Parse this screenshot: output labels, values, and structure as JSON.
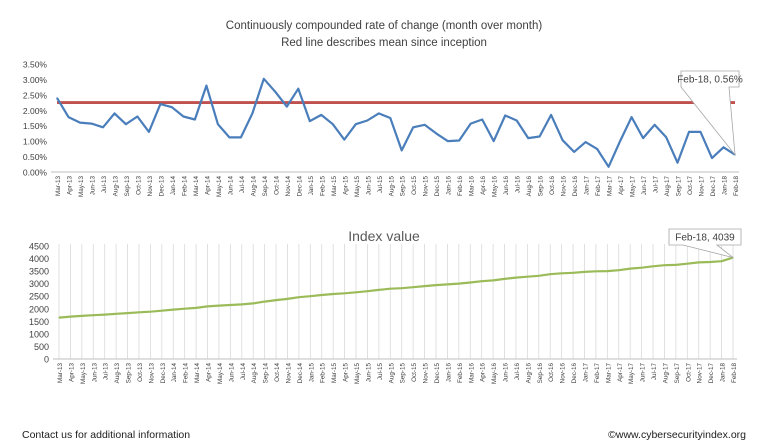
{
  "footer": {
    "left_text": "Contact us for additional information",
    "right_text": "©www.cybersecurityindex.org"
  },
  "colors": {
    "rate_line": "#4a7ebb",
    "mean_line": "#c0504d",
    "index_line": "#9bbb59",
    "gridline": "#d9d9d9"
  },
  "chart_data": [
    {
      "type": "line",
      "title": "Continuously compounded rate of change (month over month)",
      "subtitle": "Red line describes mean since inception",
      "categories": [
        "Mar-13",
        "Apr-13",
        "May-13",
        "Jun-13",
        "Jul-13",
        "Aug-13",
        "Sep-13",
        "Oct-13",
        "Nov-13",
        "Dec-13",
        "Jan-14",
        "Feb-14",
        "Mar-14",
        "Apr-14",
        "May-14",
        "Jun-14",
        "Jul-14",
        "Aug-14",
        "Sep-14",
        "Oct-14",
        "Nov-14",
        "Dec-14",
        "Jan-15",
        "Feb-15",
        "Mar-15",
        "Apr-15",
        "May-15",
        "Jun-15",
        "Jul-15",
        "Aug-15",
        "Sep-15",
        "Oct-15",
        "Nov-15",
        "Dec-15",
        "Jan-16",
        "Feb-16",
        "Mar-16",
        "Apr-16",
        "May-16",
        "Jun-16",
        "Jul-16",
        "Aug-16",
        "Sep-16",
        "Oct-16",
        "Nov-16",
        "Dec-16",
        "Jan-17",
        "Feb-17",
        "Mar-17",
        "Apr-17",
        "May-17",
        "Jun-17",
        "Jul-17",
        "Aug-17",
        "Sep-17",
        "Oct-17",
        "Nov-17",
        "Dec-17",
        "Jan-18",
        "Feb-18"
      ],
      "series": [
        {
          "values": [
            2.4,
            1.78,
            1.6,
            1.57,
            1.45,
            1.9,
            1.55,
            1.8,
            1.3,
            2.2,
            2.1,
            1.8,
            1.7,
            2.8,
            1.55,
            1.12,
            1.12,
            1.9,
            3.02,
            2.6,
            2.12,
            2.7,
            1.65,
            1.85,
            1.55,
            1.05,
            1.55,
            1.67,
            1.9,
            1.75,
            0.7,
            1.45,
            1.53,
            1.25,
            1.0,
            1.02,
            1.57,
            1.7,
            1.0,
            1.83,
            1.67,
            1.1,
            1.15,
            1.85,
            1.03,
            0.65,
            0.97,
            0.75,
            0.17,
            1.0,
            1.78,
            1.1,
            1.53,
            1.13,
            0.3,
            1.3,
            1.3,
            0.45,
            0.8,
            0.56
          ]
        }
      ],
      "mean_value": 2.25,
      "y_ticks": [
        "0.00%",
        "0.50%",
        "1.00%",
        "1.50%",
        "2.00%",
        "2.50%",
        "3.00%",
        "3.50%"
      ],
      "ylim": [
        0,
        3.5
      ],
      "callout": "Feb-18, 0.56%",
      "grid": false
    },
    {
      "type": "line",
      "title": "Index value",
      "categories": [
        "Mar-13",
        "Apr-13",
        "May-13",
        "Jun-13",
        "Jul-13",
        "Aug-13",
        "Sep-13",
        "Oct-13",
        "Nov-13",
        "Dec-13",
        "Jan-14",
        "Feb-14",
        "Mar-14",
        "Apr-14",
        "May-14",
        "Jun-14",
        "Jul-14",
        "Aug-14",
        "Sep-14",
        "Oct-14",
        "Nov-14",
        "Dec-14",
        "Jan-15",
        "Feb-15",
        "Mar-15",
        "Apr-15",
        "May-15",
        "Jun-15",
        "Jul-15",
        "Aug-15",
        "Sep-15",
        "Oct-15",
        "Nov-15",
        "Dec-15",
        "Jan-16",
        "Feb-16",
        "Mar-16",
        "Apr-16",
        "May-16",
        "Jun-16",
        "Jul-16",
        "Aug-16",
        "Sep-16",
        "Oct-16",
        "Nov-16",
        "Dec-16",
        "Jan-17",
        "Feb-17",
        "Mar-17",
        "Apr-17",
        "May-17",
        "Jun-17",
        "Jul-17",
        "Aug-17",
        "Sep-17",
        "Oct-17",
        "Nov-17",
        "Dec-17",
        "Jan-18",
        "Feb-18"
      ],
      "series": [
        {
          "values": [
            1650,
            1690,
            1718,
            1745,
            1770,
            1800,
            1828,
            1858,
            1882,
            1925,
            1966,
            2002,
            2036,
            2094,
            2126,
            2150,
            2174,
            2216,
            2285,
            2345,
            2395,
            2460,
            2500,
            2548,
            2588,
            2616,
            2656,
            2700,
            2752,
            2800,
            2820,
            2861,
            2905,
            2942,
            2971,
            3001,
            3048,
            3100,
            3131,
            3188,
            3241,
            3277,
            3315,
            3377,
            3412,
            3434,
            3468,
            3494,
            3500,
            3535,
            3599,
            3637,
            3693,
            3735,
            3746,
            3795,
            3845,
            3862,
            3895,
            4039
          ]
        }
      ],
      "y_ticks": [
        "0",
        "500",
        "1000",
        "1500",
        "2000",
        "2500",
        "3000",
        "3500",
        "4000",
        "4500"
      ],
      "ylim": [
        0,
        4500
      ],
      "callout": "Feb-18, 4039",
      "grid": true
    }
  ]
}
